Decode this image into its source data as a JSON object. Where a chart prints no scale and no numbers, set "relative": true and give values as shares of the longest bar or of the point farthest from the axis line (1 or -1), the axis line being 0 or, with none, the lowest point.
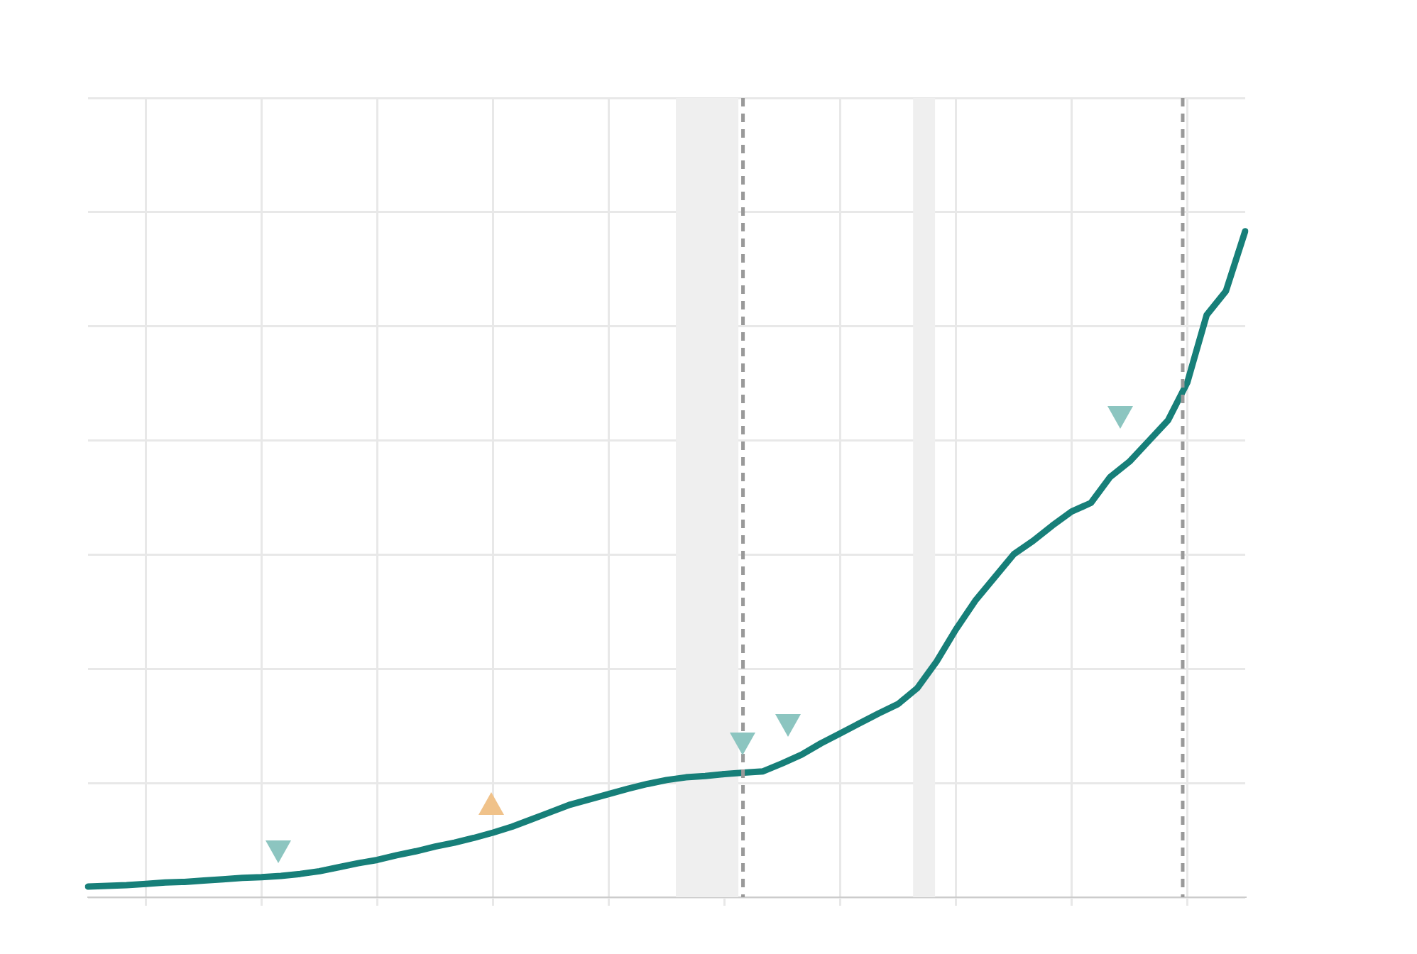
{
  "chart_data": {
    "type": "line",
    "relative": true,
    "grid": true,
    "categories": [
      null,
      null,
      null,
      null,
      null,
      null,
      null,
      null,
      null,
      null,
      null,
      null,
      null,
      null,
      null,
      null,
      null,
      null,
      null,
      null,
      null,
      null,
      null,
      null,
      null,
      null,
      null,
      null,
      null,
      null,
      null,
      null,
      null,
      null,
      null,
      null,
      null,
      null,
      null,
      null,
      null,
      null,
      null,
      null,
      null,
      null,
      null,
      null,
      null,
      null,
      null,
      null,
      null,
      null,
      null,
      null,
      null,
      null,
      null,
      null,
      null
    ],
    "series": [
      {
        "color": "#177f79",
        "marker": "none",
        "line_style": "solid",
        "values": [
          0.016,
          0.017,
          0.018,
          0.02,
          0.022,
          0.023,
          0.025,
          0.027,
          0.029,
          0.03,
          0.032,
          0.035,
          0.039,
          0.045,
          0.051,
          0.056,
          0.063,
          0.069,
          0.076,
          0.082,
          0.089,
          0.097,
          0.106,
          0.117,
          0.128,
          0.139,
          0.147,
          0.155,
          0.163,
          0.17,
          0.176,
          0.18,
          0.182,
          0.185,
          0.187,
          0.189,
          0.201,
          0.214,
          0.231,
          0.246,
          0.261,
          0.276,
          0.29,
          0.314,
          0.354,
          0.402,
          0.445,
          0.48,
          0.515,
          0.535,
          0.558,
          0.579,
          0.592,
          0.631,
          0.654,
          0.685,
          0.716,
          0.773,
          0.874,
          0.91,
          1
        ]
      }
    ],
    "legend": false
  }
}
